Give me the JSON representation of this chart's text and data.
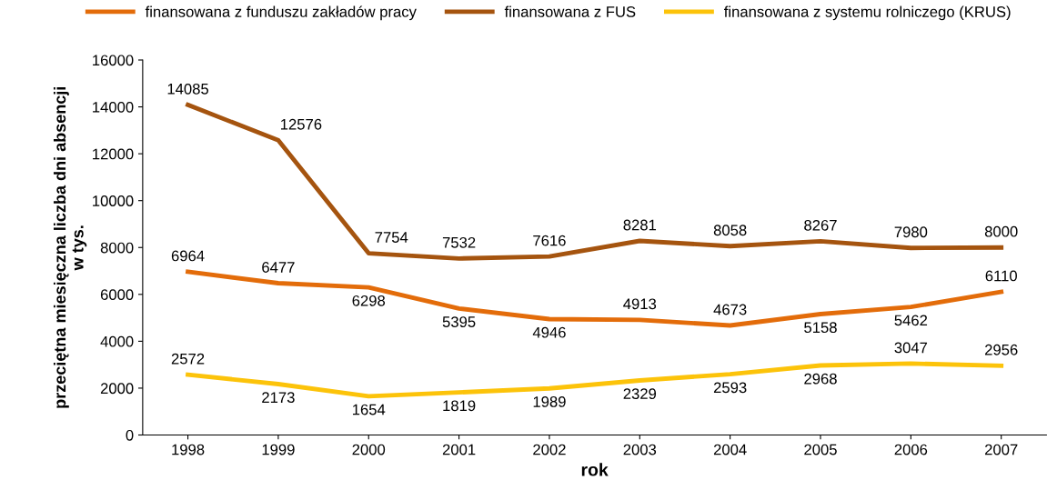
{
  "chart_data": {
    "type": "line",
    "xlabel": "rok",
    "ylabel": "przeciętna miesięczna liczba dni absencji\nw tys.",
    "categories": [
      "1998",
      "1999",
      "2000",
      "2001",
      "2002",
      "2003",
      "2004",
      "2005",
      "2006",
      "2007"
    ],
    "series": [
      {
        "name": "finansowana z funduszu zakładów pracy",
        "color": "#e36c0a",
        "values": [
          6964,
          6477,
          6298,
          5395,
          4946,
          4913,
          4673,
          5158,
          5462,
          6110
        ]
      },
      {
        "name": "finansowana z FUS",
        "color": "#a5540f",
        "values": [
          14085,
          12576,
          7754,
          7532,
          7616,
          8281,
          8058,
          8267,
          7980,
          8000
        ]
      },
      {
        "name": "finansowana z systemu rolniczego (KRUS)",
        "color": "#fcc30a",
        "values": [
          2572,
          2173,
          1654,
          1819,
          1989,
          2329,
          2593,
          2968,
          3047,
          2956
        ]
      }
    ],
    "ylim": [
      0,
      16000
    ],
    "yticks": [
      0,
      2000,
      4000,
      6000,
      8000,
      10000,
      12000,
      14000,
      16000
    ],
    "data_labels": true,
    "legend": "top",
    "grid": false,
    "marker": "none",
    "line_style": "solid"
  }
}
